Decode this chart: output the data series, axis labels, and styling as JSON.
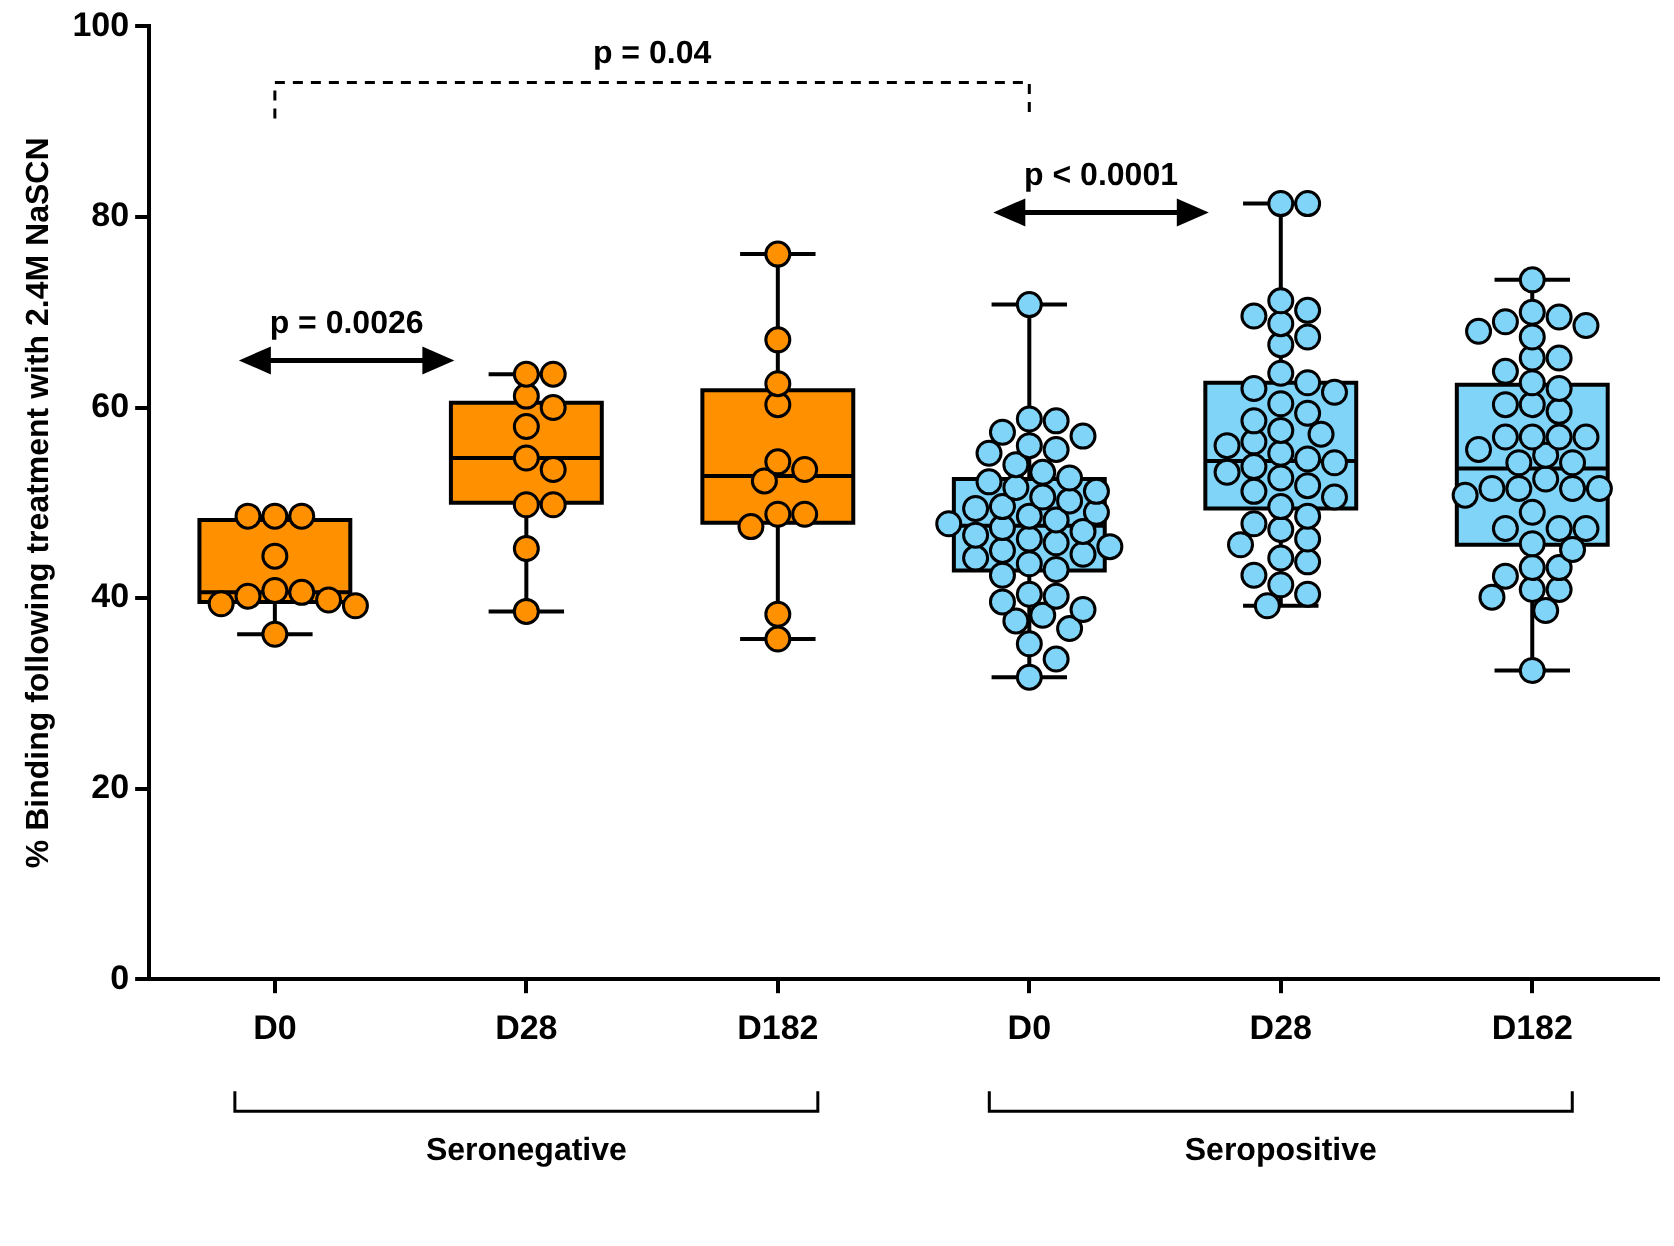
{
  "chart_data": {
    "type": "box",
    "ylabel": "% Binding following treatment with 2.4M NaSCN",
    "categories": [
      "D0",
      "D28",
      "D182",
      "D0",
      "D28",
      "D182"
    ],
    "ylim": [
      0,
      100
    ],
    "yticks": [
      0,
      20,
      40,
      60,
      80,
      100
    ],
    "annotations": [
      "p = 0.04",
      "p = 0.0026",
      "p < 0.0001",
      "Seronegative",
      "Seropositive"
    ],
    "series": [
      {
        "color": "#ff9100",
        "boxes": [
          {
            "low": 36.2,
            "q1": 39.6,
            "median": 40.6,
            "q3": 48.2,
            "high": 48.6
          },
          {
            "low": 38.6,
            "q1": 50.0,
            "median": 54.7,
            "q3": 60.5,
            "high": 63.5
          },
          {
            "low": 35.7,
            "q1": 47.9,
            "median": 52.8,
            "q3": 61.8,
            "high": 76.1
          },
          null,
          null,
          null
        ]
      },
      {
        "color": "#80d4f8",
        "boxes": [
          null,
          null,
          null,
          {
            "low": 31.7,
            "q1": 42.9,
            "median": 47.6,
            "q3": 52.5,
            "high": 70.8
          },
          {
            "low": 39.2,
            "q1": 49.4,
            "median": 54.4,
            "q3": 62.6,
            "high": 81.4
          },
          {
            "low": 32.4,
            "q1": 45.6,
            "median": 53.6,
            "q3": 62.4,
            "high": 73.4
          }
        ]
      },
      {
        "type": "scatter",
        "color": "#ff9100",
        "values": [
          48.6,
          63.5,
          76.1,
          null,
          null,
          null
        ]
      },
      {
        "type": "scatter",
        "color": "#ff9100",
        "values": [
          48.6,
          63.5,
          67.1,
          null,
          null,
          null
        ]
      },
      {
        "type": "scatter",
        "color": "#ff9100",
        "values": [
          48.6,
          61.2,
          62.5,
          null,
          null,
          null
        ]
      },
      {
        "type": "scatter",
        "color": "#ff9100",
        "values": [
          44.4,
          60.0,
          60.3,
          null,
          null,
          null
        ]
      },
      {
        "type": "scatter",
        "color": "#ff9100",
        "values": [
          40.8,
          58.0,
          54.3,
          null,
          null,
          null
        ]
      },
      {
        "type": "scatter",
        "color": "#ff9100",
        "values": [
          40.6,
          54.7,
          53.5,
          null,
          null,
          null
        ]
      },
      {
        "type": "scatter",
        "color": "#ff9100",
        "values": [
          40.2,
          53.5,
          52.3,
          null,
          null,
          null
        ]
      },
      {
        "type": "scatter",
        "color": "#ff9100",
        "values": [
          39.8,
          49.8,
          48.8,
          null,
          null,
          null
        ]
      },
      {
        "type": "scatter",
        "color": "#ff9100",
        "values": [
          39.4,
          49.8,
          48.8,
          null,
          null,
          null
        ]
      },
      {
        "type": "scatter",
        "color": "#ff9100",
        "values": [
          39.2,
          45.2,
          47.5,
          null,
          null,
          null
        ]
      },
      {
        "type": "scatter",
        "color": "#ff9100",
        "values": [
          36.2,
          38.6,
          38.3,
          null,
          null,
          null
        ]
      },
      {
        "type": "scatter",
        "color": "#ff9100",
        "values": [
          null,
          null,
          35.7,
          null,
          null,
          null
        ]
      },
      {
        "type": "scatter",
        "color": "#80d4f8",
        "values": [
          null,
          null,
          null,
          70.8,
          81.4,
          73.4
        ]
      },
      {
        "type": "scatter",
        "color": "#80d4f8",
        "values": [
          null,
          null,
          null,
          58.8,
          81.4,
          70.0
        ]
      },
      {
        "type": "scatter",
        "color": "#80d4f8",
        "values": [
          null,
          null,
          null,
          58.6,
          71.2,
          69.5
        ]
      },
      {
        "type": "scatter",
        "color": "#80d4f8",
        "values": [
          null,
          null,
          null,
          57.4,
          70.2,
          69.0
        ]
      },
      {
        "type": "scatter",
        "color": "#80d4f8",
        "values": [
          null,
          null,
          null,
          57.0,
          69.6,
          68.6
        ]
      },
      {
        "type": "scatter",
        "color": "#80d4f8",
        "values": [
          null,
          null,
          null,
          56.0,
          68.8,
          68.0
        ]
      },
      {
        "type": "scatter",
        "color": "#80d4f8",
        "values": [
          null,
          null,
          null,
          55.6,
          67.4,
          67.4
        ]
      },
      {
        "type": "scatter",
        "color": "#80d4f8",
        "values": [
          null,
          null,
          null,
          55.2,
          66.6,
          65.2
        ]
      },
      {
        "type": "scatter",
        "color": "#80d4f8",
        "values": [
          null,
          null,
          null,
          54.0,
          63.6,
          65.2
        ]
      },
      {
        "type": "scatter",
        "color": "#80d4f8",
        "values": [
          null,
          null,
          null,
          53.2,
          62.6,
          63.8
        ]
      },
      {
        "type": "scatter",
        "color": "#80d4f8",
        "values": [
          null,
          null,
          null,
          52.6,
          62.0,
          62.6
        ]
      },
      {
        "type": "scatter",
        "color": "#80d4f8",
        "values": [
          null,
          null,
          null,
          52.2,
          61.6,
          62.0
        ]
      },
      {
        "type": "scatter",
        "color": "#80d4f8",
        "values": [
          null,
          null,
          null,
          51.6,
          60.4,
          60.3
        ]
      },
      {
        "type": "scatter",
        "color": "#80d4f8",
        "values": [
          null,
          null,
          null,
          51.2,
          59.4,
          60.3
        ]
      },
      {
        "type": "scatter",
        "color": "#80d4f8",
        "values": [
          null,
          null,
          null,
          50.6,
          58.6,
          59.6
        ]
      },
      {
        "type": "scatter",
        "color": "#80d4f8",
        "values": [
          null,
          null,
          null,
          50.2,
          57.6,
          56.9
        ]
      },
      {
        "type": "scatter",
        "color": "#80d4f8",
        "values": [
          null,
          null,
          null,
          49.6,
          57.2,
          56.9
        ]
      },
      {
        "type": "scatter",
        "color": "#80d4f8",
        "values": [
          null,
          null,
          null,
          49.4,
          56.4,
          56.9
        ]
      },
      {
        "type": "scatter",
        "color": "#80d4f8",
        "values": [
          null,
          null,
          null,
          49.0,
          56.0,
          56.9
        ]
      },
      {
        "type": "scatter",
        "color": "#80d4f8",
        "values": [
          null,
          null,
          null,
          48.6,
          55.2,
          55.6
        ]
      },
      {
        "type": "scatter",
        "color": "#80d4f8",
        "values": [
          null,
          null,
          null,
          48.2,
          54.6,
          55.0
        ]
      },
      {
        "type": "scatter",
        "color": "#80d4f8",
        "values": [
          null,
          null,
          null,
          47.8,
          54.2,
          54.2
        ]
      },
      {
        "type": "scatter",
        "color": "#80d4f8",
        "values": [
          null,
          null,
          null,
          47.4,
          53.8,
          54.2
        ]
      },
      {
        "type": "scatter",
        "color": "#80d4f8",
        "values": [
          null,
          null,
          null,
          47.0,
          53.2,
          52.5
        ]
      },
      {
        "type": "scatter",
        "color": "#80d4f8",
        "values": [
          null,
          null,
          null,
          46.6,
          52.6,
          51.5
        ]
      },
      {
        "type": "scatter",
        "color": "#80d4f8",
        "values": [
          null,
          null,
          null,
          46.2,
          51.8,
          51.5
        ]
      },
      {
        "type": "scatter",
        "color": "#80d4f8",
        "values": [
          null,
          null,
          null,
          45.8,
          51.2,
          51.5
        ]
      },
      {
        "type": "scatter",
        "color": "#80d4f8",
        "values": [
          null,
          null,
          null,
          45.4,
          50.6,
          51.5
        ]
      },
      {
        "type": "scatter",
        "color": "#80d4f8",
        "values": [
          null,
          null,
          null,
          45.0,
          49.6,
          50.8
        ]
      },
      {
        "type": "scatter",
        "color": "#80d4f8",
        "values": [
          null,
          null,
          null,
          44.6,
          48.6,
          49.0
        ]
      },
      {
        "type": "scatter",
        "color": "#80d4f8",
        "values": [
          null,
          null,
          null,
          44.2,
          47.8,
          47.3
        ]
      },
      {
        "type": "scatter",
        "color": "#80d4f8",
        "values": [
          null,
          null,
          null,
          43.6,
          47.2,
          47.3
        ]
      },
      {
        "type": "scatter",
        "color": "#80d4f8",
        "values": [
          null,
          null,
          null,
          43.0,
          46.2,
          47.3
        ]
      },
      {
        "type": "scatter",
        "color": "#80d4f8",
        "values": [
          null,
          null,
          null,
          42.4,
          45.6,
          45.7
        ]
      },
      {
        "type": "scatter",
        "color": "#80d4f8",
        "values": [
          null,
          null,
          null,
          40.4,
          44.2,
          45.1
        ]
      },
      {
        "type": "scatter",
        "color": "#80d4f8",
        "values": [
          null,
          null,
          null,
          40.2,
          43.8,
          43.2
        ]
      },
      {
        "type": "scatter",
        "color": "#80d4f8",
        "values": [
          null,
          null,
          null,
          39.6,
          42.4,
          43.2
        ]
      },
      {
        "type": "scatter",
        "color": "#80d4f8",
        "values": [
          null,
          null,
          null,
          38.8,
          41.4,
          42.3
        ]
      },
      {
        "type": "scatter",
        "color": "#80d4f8",
        "values": [
          null,
          null,
          null,
          38.2,
          40.4,
          40.9
        ]
      },
      {
        "type": "scatter",
        "color": "#80d4f8",
        "values": [
          null,
          null,
          null,
          37.6,
          39.2,
          40.9
        ]
      },
      {
        "type": "scatter",
        "color": "#80d4f8",
        "values": [
          null,
          null,
          null,
          36.8,
          null,
          40.1
        ]
      },
      {
        "type": "scatter",
        "color": "#80d4f8",
        "values": [
          null,
          null,
          null,
          35.2,
          null,
          38.7
        ]
      },
      {
        "type": "scatter",
        "color": "#80d4f8",
        "values": [
          null,
          null,
          null,
          33.6,
          null,
          32.4
        ]
      },
      {
        "type": "scatter",
        "color": "#80d4f8",
        "values": [
          null,
          null,
          null,
          31.7,
          null,
          null
        ]
      }
    ]
  }
}
